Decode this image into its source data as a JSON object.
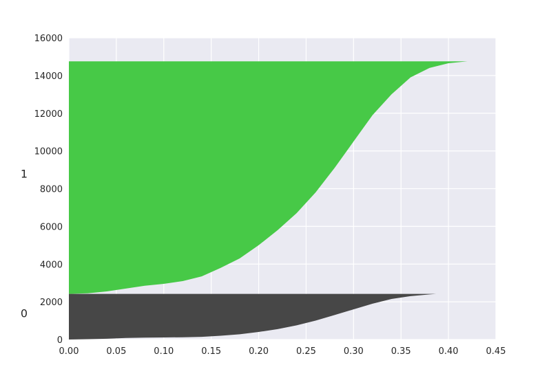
{
  "chart_data": {
    "type": "area",
    "title": "",
    "xlabel": "",
    "ylabel": "",
    "xlim": [
      0.0,
      0.45
    ],
    "ylim": [
      0,
      16000
    ],
    "grid": true,
    "background": "#eaeaf2",
    "xticks": [
      "0.00",
      "0.05",
      "0.10",
      "0.15",
      "0.20",
      "0.25",
      "0.30",
      "0.35",
      "0.40",
      "0.45"
    ],
    "xtick_values": [
      0.0,
      0.05,
      0.1,
      0.15,
      0.2,
      0.25,
      0.3,
      0.35,
      0.4,
      0.45
    ],
    "yticks": [
      "0",
      "2000",
      "4000",
      "6000",
      "8000",
      "10000",
      "12000",
      "14000",
      "16000"
    ],
    "ytick_values": [
      0,
      2000,
      4000,
      6000,
      8000,
      10000,
      12000,
      14000,
      16000
    ],
    "clusters": [
      {
        "label": "0",
        "label_y": 1400,
        "color": "#474747",
        "y_start": 0,
        "y_end": 2420,
        "profile": [
          [
            0.0,
            0
          ],
          [
            0.02,
            20
          ],
          [
            0.04,
            40
          ],
          [
            0.06,
            80
          ],
          [
            0.08,
            100
          ],
          [
            0.1,
            110
          ],
          [
            0.12,
            120
          ],
          [
            0.14,
            140
          ],
          [
            0.16,
            200
          ],
          [
            0.18,
            280
          ],
          [
            0.2,
            400
          ],
          [
            0.22,
            550
          ],
          [
            0.24,
            750
          ],
          [
            0.26,
            1000
          ],
          [
            0.28,
            1300
          ],
          [
            0.3,
            1600
          ],
          [
            0.32,
            1900
          ],
          [
            0.34,
            2150
          ],
          [
            0.36,
            2300
          ],
          [
            0.38,
            2390
          ],
          [
            0.387,
            2420
          ]
        ]
      },
      {
        "label": "1",
        "label_y": 8800,
        "color": "#47c947",
        "y_start": 2420,
        "y_end": 14750,
        "profile": [
          [
            0.0,
            2420
          ],
          [
            0.02,
            2450
          ],
          [
            0.04,
            2550
          ],
          [
            0.06,
            2700
          ],
          [
            0.08,
            2850
          ],
          [
            0.1,
            2950
          ],
          [
            0.12,
            3100
          ],
          [
            0.14,
            3350
          ],
          [
            0.16,
            3800
          ],
          [
            0.18,
            4300
          ],
          [
            0.2,
            5000
          ],
          [
            0.22,
            5800
          ],
          [
            0.24,
            6700
          ],
          [
            0.26,
            7800
          ],
          [
            0.28,
            9100
          ],
          [
            0.3,
            10500
          ],
          [
            0.32,
            11900
          ],
          [
            0.34,
            13000
          ],
          [
            0.36,
            13900
          ],
          [
            0.38,
            14400
          ],
          [
            0.4,
            14650
          ],
          [
            0.42,
            14750
          ]
        ]
      }
    ]
  }
}
